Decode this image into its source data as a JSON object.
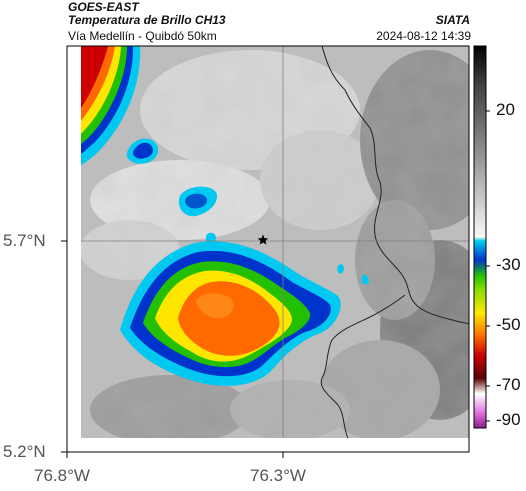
{
  "header": {
    "satellite": "GOES-EAST",
    "product": "Temperatura de Brillo CH13",
    "agency": "SIATA",
    "route": "Vía Medellín - Quibdó 50km",
    "datetime": "2024-08-12 14:39"
  },
  "axes": {
    "lat_ticks": [
      "5.7°N",
      "5.2°N"
    ],
    "lon_ticks": [
      "76.8°W",
      "76.3°W"
    ]
  },
  "colorbar": {
    "ticks": [
      "20",
      "-30",
      "-50",
      "-70",
      "-90"
    ]
  },
  "map": {
    "marker": "star-marker",
    "colors": {
      "red": "#cc0000",
      "orange": "#ff6a00",
      "yellow": "#ffe600",
      "green": "#22c000",
      "blue": "#0033cc",
      "cyan": "#00b4e6",
      "cloud_gray": "#b8b8b8"
    }
  }
}
